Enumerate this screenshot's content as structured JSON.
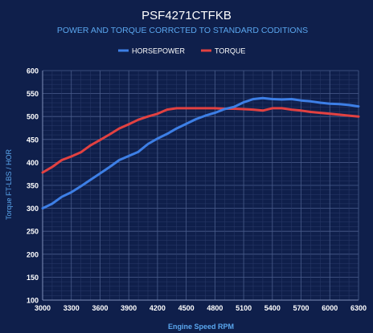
{
  "chart_data": {
    "type": "line",
    "title": "PSF4271CTFKB",
    "subtitle": "POWER AND TORQUE CORRCTED TO STANDARD CODITIONS",
    "xlabel": "Engine Speed RPM",
    "ylabel": "Torque FT-LBS / HOR",
    "x_ticks": [
      "3000",
      "3300",
      "3600",
      "3900",
      "4200",
      "4500",
      "4800",
      "5100",
      "5400",
      "5700",
      "6000",
      "6300"
    ],
    "y_ticks": [
      "600",
      "550",
      "500",
      "450",
      "400",
      "350",
      "300",
      "250",
      "200",
      "150",
      "100"
    ],
    "xlim": [
      3000,
      6300
    ],
    "ylim": [
      100,
      600
    ],
    "grid": true,
    "legend_position": "top-center",
    "x": [
      3000,
      3100,
      3200,
      3300,
      3400,
      3500,
      3600,
      3700,
      3800,
      3900,
      4000,
      4100,
      4200,
      4300,
      4400,
      4500,
      4600,
      4700,
      4800,
      4900,
      5000,
      5100,
      5200,
      5300,
      5400,
      5500,
      5600,
      5700,
      5800,
      5900,
      6000,
      6100,
      6200,
      6300
    ],
    "series": [
      {
        "name": "HORSEPOWER",
        "color": "#3d7fe6",
        "values": [
          300,
          310,
          325,
          335,
          348,
          362,
          376,
          390,
          405,
          414,
          423,
          440,
          452,
          462,
          474,
          484,
          494,
          502,
          508,
          516,
          521,
          531,
          538,
          540,
          538,
          537,
          538,
          535,
          533,
          530,
          528,
          527,
          525,
          522
        ]
      },
      {
        "name": "TORQUE",
        "color": "#e24141",
        "values": [
          378,
          390,
          405,
          413,
          422,
          437,
          449,
          461,
          474,
          483,
          493,
          500,
          506,
          515,
          518,
          518,
          518,
          518,
          518,
          517,
          517,
          516,
          515,
          513,
          518,
          518,
          515,
          513,
          510,
          508,
          506,
          504,
          502,
          500
        ]
      }
    ]
  }
}
